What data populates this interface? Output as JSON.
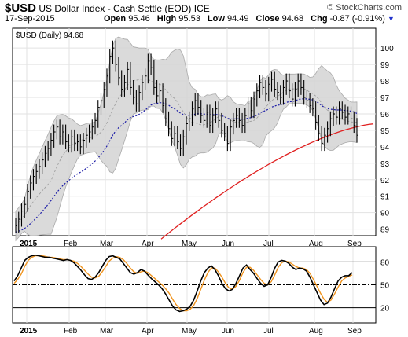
{
  "header": {
    "symbol": "$USD",
    "name": "US Dollar Index - Cash Settle (EOD) ICE",
    "brand": "© StockCharts.com",
    "date": "17-Sep-2015",
    "open_label": "Open",
    "open": "95.46",
    "high_label": "High",
    "high": "95.53",
    "low_label": "Low",
    "low": "94.49",
    "close_label": "Close",
    "close": "94.68",
    "chg_label": "Chg",
    "chg": "-0.87 (-0.91%)",
    "chg_arrow": "down-arrow-icon"
  },
  "chart_data": [
    {
      "type": "line",
      "legend": "$USD (Daily) 94.68",
      "yticks": [
        89,
        90,
        91,
        92,
        93,
        94,
        95,
        96,
        97,
        98,
        99,
        100
      ],
      "ylim": [
        88.6,
        101.2
      ],
      "xlabels": [
        "2015",
        "Feb",
        "Mar",
        "Apr",
        "May",
        "Jun",
        "Jul",
        "Aug",
        "Sep"
      ],
      "grid": true,
      "colors": {
        "price": "#000000",
        "ma50": "#1a1aa6",
        "ma200": "#e02020",
        "band": "#d4d4d4",
        "mid": "#999999"
      },
      "closes": [
        89.2,
        89.6,
        90.1,
        90.5,
        91.3,
        91.8,
        92.2,
        92.5,
        92.8,
        93.2,
        93.6,
        93.9,
        94.4,
        94.9,
        95.2,
        94.6,
        94.9,
        94.3,
        94.1,
        94.6,
        94.2,
        94.3,
        94.0,
        94.4,
        94.7,
        94.9,
        95.2,
        95.6,
        96.4,
        96.8,
        97.5,
        98.3,
        99.5,
        100.0,
        99.0,
        98.2,
        97.5,
        97.9,
        98.7,
        97.6,
        97.0,
        96.6,
        97.3,
        97.9,
        98.3,
        99.2,
        98.8,
        97.6,
        97.1,
        97.4,
        96.5,
        95.7,
        95.1,
        94.5,
        94.8,
        94.3,
        93.9,
        94.6,
        95.4,
        95.7,
        96.3,
        96.8,
        96.4,
        95.9,
        95.6,
        96.1,
        95.3,
        95.9,
        96.3,
        95.6,
        95.0,
        94.8,
        94.2,
        95.2,
        95.6,
        95.9,
        95.6,
        95.3,
        95.9,
        96.6,
        96.2,
        96.9,
        97.4,
        97.9,
        97.6,
        97.2,
        97.8,
        98.1,
        97.5,
        97.3,
        97.0,
        97.6,
        98.0,
        97.4,
        96.9,
        97.5,
        98.0,
        97.6,
        97.0,
        96.8,
        96.5,
        96.3,
        95.5,
        94.8,
        94.2,
        94.7,
        95.1,
        95.7,
        96.0,
        95.8,
        96.3,
        96.1,
        95.8,
        96.0,
        95.7,
        95.3,
        94.7
      ],
      "ma200": [
        88.4,
        95.4
      ],
      "ma50_start": 88.8
    },
    {
      "type": "line",
      "title": "",
      "yticks": [
        20,
        50,
        80
      ],
      "ylim": [
        0,
        100
      ],
      "reference_lines": [
        20,
        50,
        80
      ],
      "fast": [
        55,
        62,
        72,
        82,
        86,
        88,
        89,
        88,
        87,
        86,
        86,
        85,
        84,
        83,
        82,
        83,
        82,
        79,
        74,
        69,
        63,
        58,
        57,
        60,
        66,
        74,
        82,
        87,
        88,
        86,
        84,
        78,
        72,
        66,
        64,
        66,
        70,
        68,
        63,
        58,
        54,
        50,
        45,
        38,
        30,
        22,
        17,
        15,
        16,
        18,
        22,
        30,
        42,
        55,
        66,
        72,
        75,
        70,
        62,
        52,
        45,
        42,
        44,
        52,
        62,
        72,
        76,
        70,
        65,
        58,
        52,
        48,
        50,
        60,
        72,
        80,
        82,
        81,
        78,
        73,
        70,
        72,
        71,
        68,
        60,
        50,
        40,
        30,
        24,
        26,
        34,
        45,
        55,
        60,
        62,
        62,
        66
      ],
      "slow": [
        52,
        57,
        64,
        74,
        82,
        86,
        88,
        88,
        88,
        87,
        86,
        86,
        85,
        84,
        83,
        83,
        82,
        81,
        78,
        74,
        69,
        64,
        60,
        59,
        61,
        67,
        74,
        81,
        85,
        87,
        86,
        83,
        78,
        72,
        67,
        65,
        67,
        68,
        66,
        62,
        58,
        54,
        50,
        45,
        39,
        31,
        24,
        19,
        16,
        16,
        18,
        23,
        32,
        44,
        56,
        66,
        72,
        72,
        67,
        60,
        52,
        46,
        44,
        48,
        56,
        66,
        73,
        73,
        69,
        63,
        57,
        52,
        50,
        54,
        63,
        73,
        79,
        81,
        80,
        77,
        74,
        72,
        72,
        70,
        65,
        57,
        48,
        39,
        31,
        27,
        30,
        38,
        47,
        55,
        59,
        61,
        63
      ]
    }
  ]
}
